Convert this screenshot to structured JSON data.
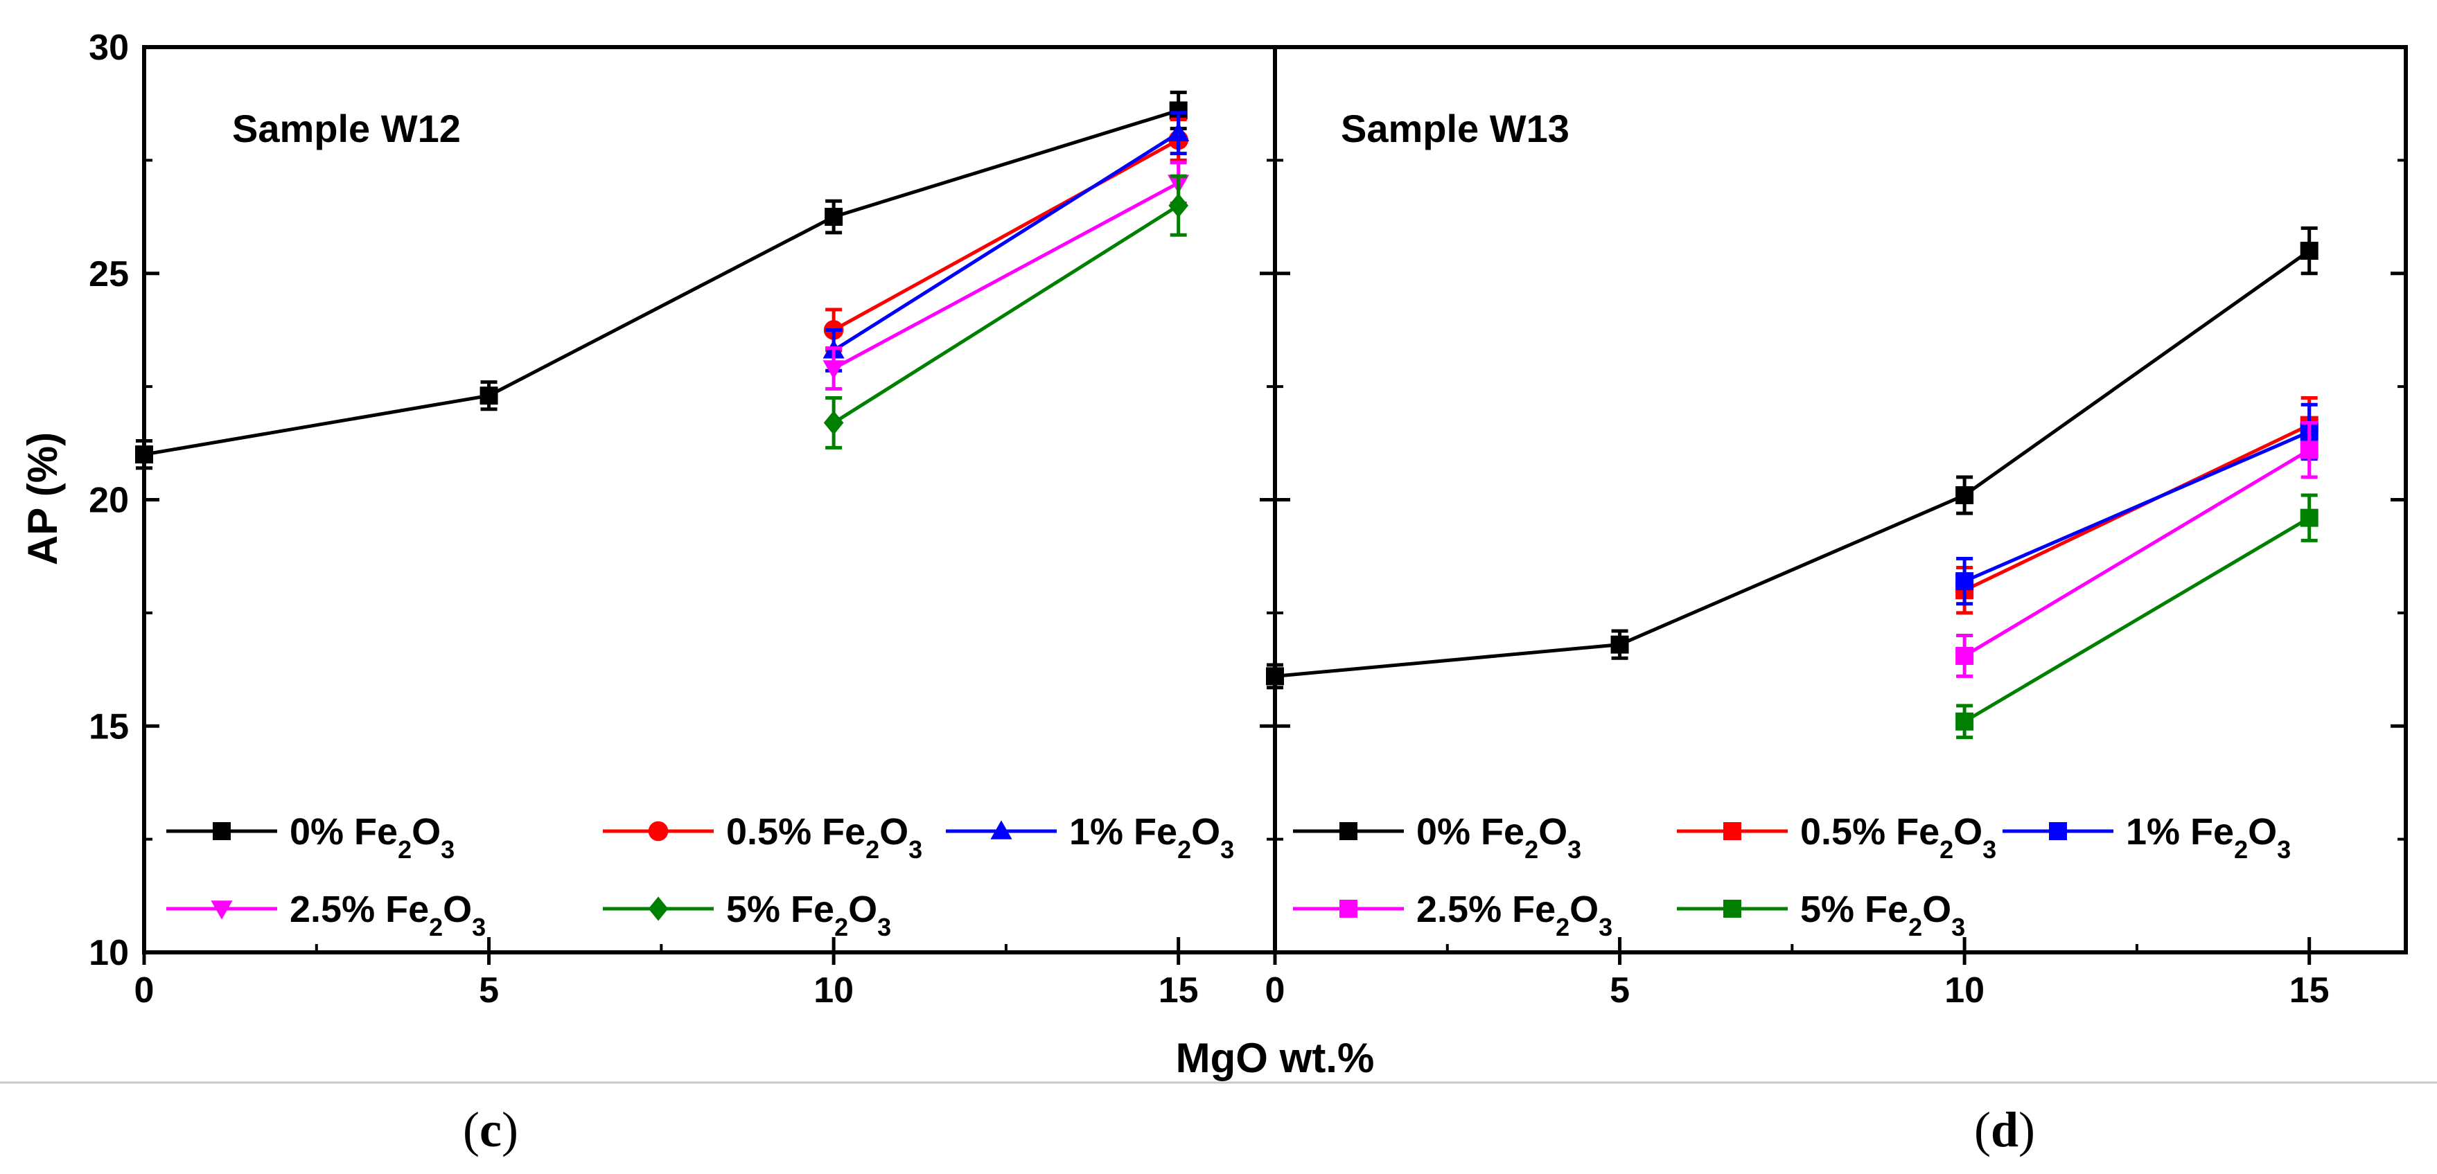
{
  "chart_data": [
    {
      "type": "line",
      "panel": "c",
      "title": "Sample W12",
      "xlabel": "MgO wt.%",
      "ylabel": "AP (%)",
      "xlim": [
        0,
        16.4
      ],
      "ylim": [
        10,
        30
      ],
      "xticks": [
        0,
        5,
        10,
        15
      ],
      "yticks": [
        10,
        15,
        20,
        25,
        30
      ],
      "series": [
        {
          "name": "0% Fe2O3",
          "label_main": "0% Fe",
          "sub1": "2",
          "mid": "O",
          "sub2": "3",
          "color": "#000000",
          "marker": "square",
          "x": [
            0,
            5,
            10,
            15
          ],
          "y": [
            21.0,
            22.3,
            26.25,
            28.6
          ],
          "err": [
            0.3,
            0.3,
            0.35,
            0.4
          ]
        },
        {
          "name": "0.5% Fe2O3",
          "label_main": "0.5% Fe",
          "sub1": "2",
          "mid": "O",
          "sub2": "3",
          "color": "#ff0000",
          "marker": "circle",
          "x": [
            10,
            15
          ],
          "y": [
            23.75,
            27.95
          ],
          "err": [
            0.45,
            0.45
          ]
        },
        {
          "name": "1% Fe2O3",
          "label_main": "1% Fe",
          "sub1": "2",
          "mid": "O",
          "sub2": "3",
          "color": "#0000ff",
          "marker": "triangle-up",
          "x": [
            10,
            15
          ],
          "y": [
            23.3,
            28.1
          ],
          "err": [
            0.45,
            0.45
          ]
        },
        {
          "name": "2.5% Fe2O3",
          "label_main": "2.5% Fe",
          "sub1": "2",
          "mid": "O",
          "sub2": "3",
          "color": "#ff00ff",
          "marker": "triangle-down",
          "x": [
            10,
            15
          ],
          "y": [
            22.9,
            27.0
          ],
          "err": [
            0.45,
            0.45
          ]
        },
        {
          "name": "5% Fe2O3",
          "label_main": "5% Fe",
          "sub1": "2",
          "mid": "O",
          "sub2": "3",
          "color": "#008000",
          "marker": "diamond",
          "x": [
            10,
            15
          ],
          "y": [
            21.7,
            26.5
          ],
          "err": [
            0.55,
            0.65
          ]
        }
      ],
      "caption_open": "(",
      "caption_letter": "c",
      "caption_close": ")"
    },
    {
      "type": "line",
      "panel": "d",
      "title": "Sample W13",
      "xlabel": "MgO wt.%",
      "ylabel": "",
      "xlim": [
        0,
        16.4
      ],
      "ylim": [
        10,
        30
      ],
      "xticks": [
        0,
        5,
        10,
        15
      ],
      "yticks": [
        10,
        15,
        20,
        25,
        30
      ],
      "series": [
        {
          "name": "0% Fe2O3",
          "label_main": "0% Fe",
          "sub1": "2",
          "mid": "O",
          "sub2": "3",
          "color": "#000000",
          "marker": "square",
          "x": [
            0,
            5,
            10,
            15
          ],
          "y": [
            16.1,
            16.8,
            20.1,
            25.5
          ],
          "err": [
            0.25,
            0.3,
            0.4,
            0.5
          ]
        },
        {
          "name": "0.5% Fe2O3",
          "label_main": "0.5% Fe",
          "sub1": "2",
          "mid": "O",
          "sub2": "3",
          "color": "#ff0000",
          "marker": "square",
          "x": [
            10,
            15
          ],
          "y": [
            18.0,
            21.65
          ],
          "err": [
            0.5,
            0.6
          ]
        },
        {
          "name": "1% Fe2O3",
          "label_main": "1% Fe",
          "sub1": "2",
          "mid": "O",
          "sub2": "3",
          "color": "#0000ff",
          "marker": "square",
          "x": [
            10,
            15
          ],
          "y": [
            18.2,
            21.5
          ],
          "err": [
            0.5,
            0.6
          ]
        },
        {
          "name": "2.5% Fe2O3",
          "label_main": "2.5% Fe",
          "sub1": "2",
          "mid": "O",
          "sub2": "3",
          "color": "#ff00ff",
          "marker": "square",
          "x": [
            10,
            15
          ],
          "y": [
            16.55,
            21.1
          ],
          "err": [
            0.45,
            0.6
          ]
        },
        {
          "name": "5% Fe2O3",
          "label_main": "5% Fe",
          "sub1": "2",
          "mid": "O",
          "sub2": "3",
          "color": "#008000",
          "marker": "square",
          "x": [
            10,
            15
          ],
          "y": [
            15.1,
            19.6
          ],
          "err": [
            0.35,
            0.5
          ]
        }
      ],
      "caption_open": "(",
      "caption_letter": "d",
      "caption_close": ")"
    }
  ]
}
